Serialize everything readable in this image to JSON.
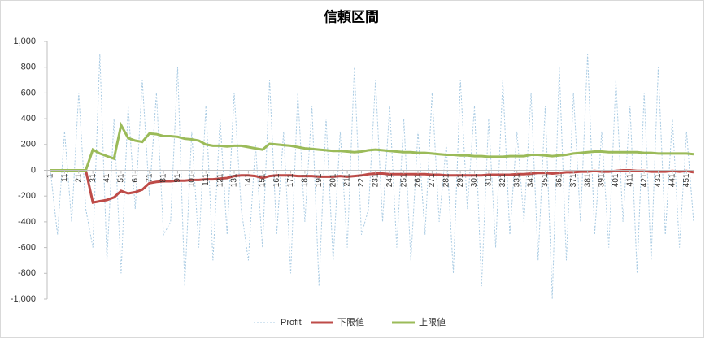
{
  "chart_data": {
    "type": "line",
    "title": "信頼区間",
    "x": [
      1,
      6,
      11,
      16,
      21,
      26,
      31,
      36,
      41,
      46,
      51,
      56,
      61,
      66,
      71,
      76,
      81,
      86,
      91,
      96,
      101,
      106,
      111,
      116,
      121,
      126,
      131,
      136,
      141,
      146,
      151,
      156,
      161,
      166,
      171,
      176,
      181,
      186,
      191,
      196,
      201,
      206,
      211,
      216,
      221,
      226,
      231,
      236,
      241,
      246,
      251,
      256,
      261,
      266,
      271,
      276,
      281,
      286,
      291,
      296,
      301,
      306,
      311,
      316,
      321,
      326,
      331,
      336,
      341,
      346,
      351,
      356,
      361,
      366,
      371,
      376,
      381,
      386,
      391,
      396,
      401,
      406,
      411,
      416,
      421,
      426,
      431,
      436,
      441,
      446,
      451,
      456
    ],
    "xlim": [
      1,
      456
    ],
    "xticks": [
      1,
      11,
      21,
      31,
      41,
      51,
      61,
      71,
      81,
      91,
      101,
      111,
      121,
      131,
      141,
      151,
      161,
      171,
      181,
      191,
      201,
      211,
      221,
      231,
      241,
      251,
      261,
      271,
      281,
      291,
      301,
      311,
      321,
      331,
      341,
      351,
      361,
      371,
      381,
      391,
      401,
      411,
      421,
      431,
      441,
      451
    ],
    "ylim": [
      -1000,
      1000
    ],
    "yticks": [
      {
        "value": -1000,
        "label": "-1,000"
      },
      -800,
      -600,
      -400,
      -200,
      0,
      200,
      400,
      600,
      800,
      {
        "value": 1000,
        "label": "1,000"
      }
    ],
    "grid": false,
    "legend": "bottom",
    "series": [
      {
        "name": "Profit",
        "color": "#a9cbe3",
        "dashed": true,
        "values": [
          0,
          -500,
          300,
          -400,
          600,
          -300,
          -600,
          900,
          -700,
          400,
          -800,
          500,
          -300,
          700,
          -200,
          600,
          -500,
          -400,
          800,
          -900,
          300,
          -600,
          500,
          -700,
          400,
          -500,
          600,
          -300,
          -700,
          200,
          -600,
          700,
          -500,
          300,
          -800,
          600,
          -400,
          500,
          -900,
          400,
          -700,
          300,
          -600,
          800,
          -500,
          -300,
          700,
          -400,
          500,
          -600,
          400,
          -700,
          300,
          -500,
          600,
          -400,
          200,
          -800,
          700,
          -300,
          500,
          -900,
          400,
          -600,
          700,
          -500,
          300,
          -400,
          600,
          -700,
          500,
          -1000,
          800,
          -700,
          600,
          -400,
          900,
          -500,
          300,
          -600,
          700,
          -400,
          500,
          -800,
          600,
          -700,
          800,
          -500,
          400,
          -600,
          300,
          -400
        ]
      },
      {
        "name": "下限値",
        "color": "#be4b48",
        "dashed": false,
        "values": [
          0,
          0,
          0,
          0,
          0,
          0,
          -250,
          -240,
          -230,
          -210,
          -160,
          -180,
          -170,
          -150,
          -100,
          -90,
          -85,
          -85,
          -80,
          -80,
          -75,
          -75,
          -70,
          -70,
          -65,
          -60,
          -45,
          -40,
          -40,
          -45,
          -60,
          -45,
          -40,
          -40,
          -40,
          -45,
          -45,
          -45,
          -50,
          -50,
          -50,
          -45,
          -50,
          -45,
          -40,
          -30,
          -25,
          -25,
          -30,
          -30,
          -30,
          -30,
          -30,
          -30,
          -35,
          -35,
          -40,
          -40,
          -40,
          -40,
          -40,
          -40,
          -35,
          -35,
          -35,
          -35,
          -30,
          -30,
          -25,
          -20,
          -20,
          -25,
          -20,
          -15,
          -15,
          -10,
          -10,
          -5,
          -10,
          -10,
          -5,
          0,
          0,
          -5,
          -5,
          -10,
          -10,
          -10,
          -5,
          -10,
          -5,
          -15
        ]
      },
      {
        "name": "上限値",
        "color": "#9bbb59",
        "dashed": false,
        "values": [
          0,
          0,
          0,
          0,
          0,
          0,
          160,
          130,
          110,
          90,
          350,
          250,
          230,
          220,
          285,
          280,
          265,
          265,
          260,
          245,
          240,
          230,
          200,
          190,
          190,
          185,
          190,
          190,
          180,
          170,
          160,
          205,
          200,
          195,
          190,
          180,
          170,
          165,
          160,
          155,
          150,
          150,
          145,
          140,
          145,
          155,
          160,
          155,
          150,
          145,
          140,
          140,
          135,
          135,
          130,
          125,
          120,
          120,
          115,
          115,
          110,
          110,
          105,
          105,
          105,
          110,
          110,
          110,
          120,
          120,
          115,
          110,
          115,
          120,
          130,
          135,
          140,
          145,
          145,
          140,
          140,
          140,
          140,
          140,
          135,
          135,
          130,
          130,
          130,
          130,
          130,
          125
        ]
      }
    ]
  }
}
